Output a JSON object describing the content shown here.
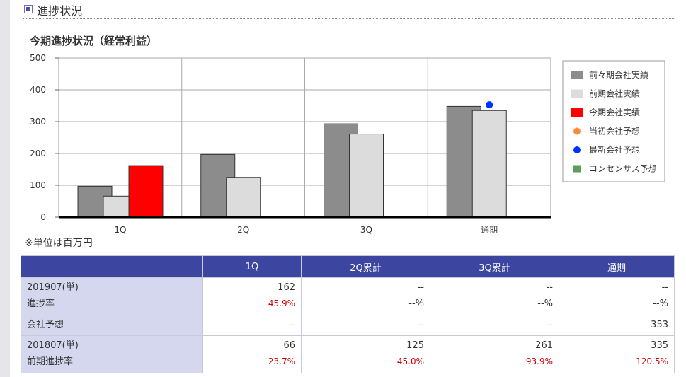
{
  "section": {
    "title": "進捗状況"
  },
  "unit_note": "※単位は百万円",
  "chart_data": {
    "type": "bar",
    "title": "今期進捗状況（経常利益）",
    "categories": [
      "1Q",
      "2Q",
      "3Q",
      "通期"
    ],
    "ylim": [
      0,
      500
    ],
    "yticks": [
      0,
      100,
      200,
      300,
      400,
      500
    ],
    "series": [
      {
        "name": "前々期会社実績",
        "kind": "bar",
        "color": "#8c8c8c",
        "values": [
          97,
          197,
          293,
          348
        ]
      },
      {
        "name": "前期会社実績",
        "kind": "bar",
        "color": "#dcdcdc",
        "values": [
          66,
          125,
          261,
          335
        ]
      },
      {
        "name": "今期会社実績",
        "kind": "bar",
        "color": "#ff0000",
        "values": [
          162,
          null,
          null,
          null
        ]
      },
      {
        "name": "当初会社予想",
        "kind": "point",
        "color": "#ff8c3c",
        "values": [
          null,
          null,
          null,
          null
        ]
      },
      {
        "name": "最新会社予想",
        "kind": "point",
        "color": "#0033ff",
        "values": [
          null,
          null,
          null,
          353
        ]
      },
      {
        "name": "コンセンサス予想",
        "kind": "point",
        "color": "#5a9e5a",
        "values": [
          null,
          null,
          null,
          null
        ]
      }
    ],
    "legend": "right"
  },
  "table": {
    "headers": [
      "",
      "1Q",
      "2Q累計",
      "3Q累計",
      "通期"
    ],
    "rows": [
      {
        "label": "201907(単)",
        "sublabel": "進捗率",
        "values": [
          "162",
          "--",
          "--",
          "--"
        ],
        "pcts": [
          "45.9%",
          "--%",
          "--%",
          "--%"
        ]
      },
      {
        "label": "会社予想",
        "values": [
          "--",
          "--",
          "--",
          "353"
        ]
      },
      {
        "label": "201807(単)",
        "sublabel": "前期進捗率",
        "values": [
          "66",
          "125",
          "261",
          "335"
        ],
        "pcts": [
          "23.7%",
          "45.0%",
          "93.9%",
          "120.5%"
        ]
      }
    ]
  }
}
